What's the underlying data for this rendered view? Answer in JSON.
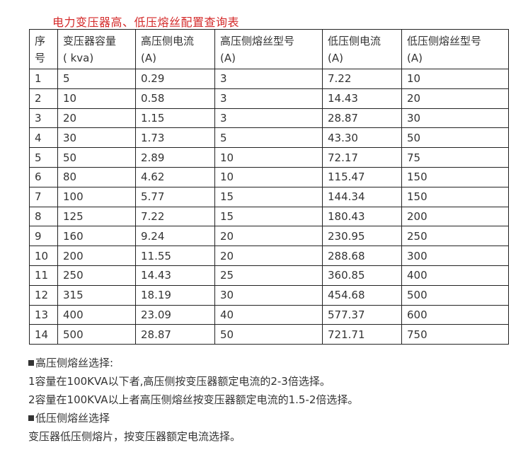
{
  "title": "电力变压器高、低压熔丝配置查询表",
  "table": {
    "headers": [
      [
        "序",
        "号"
      ],
      [
        "变压器容量",
        "( kva)"
      ],
      [
        "高压侧电流",
        "(A)"
      ],
      [
        "高压侧熔丝型号",
        "(A)"
      ],
      [
        "低压侧电流",
        "(A)"
      ],
      [
        "低压侧熔丝型号",
        "(A)"
      ]
    ],
    "rows": [
      [
        "1",
        "5",
        "0.29",
        "3",
        "7.22",
        "10"
      ],
      [
        "2",
        "10",
        "0.58",
        "3",
        "14.43",
        "20"
      ],
      [
        "3",
        "20",
        "1.15",
        "3",
        "28.87",
        "30"
      ],
      [
        "4",
        "30",
        "1.73",
        "5",
        "43.30",
        "50"
      ],
      [
        "5",
        "50",
        "2.89",
        "10",
        "72.17",
        "75"
      ],
      [
        "6",
        "80",
        "4.62",
        "10",
        "115.47",
        "150"
      ],
      [
        "7",
        "100",
        "5.77",
        "15",
        "144.34",
        "150"
      ],
      [
        "8",
        "125",
        "7.22",
        "15",
        "180.43",
        "200"
      ],
      [
        "9",
        "160",
        "9.24",
        "20",
        "230.95",
        "250"
      ],
      [
        "10",
        "200",
        "11.55",
        "20",
        "288.68",
        "300"
      ],
      [
        "11",
        "250",
        "14.43",
        "25",
        "360.85",
        "400"
      ],
      [
        "12",
        "315",
        "18.19",
        "30",
        "454.68",
        "500"
      ],
      [
        "13",
        "400",
        "23.09",
        "40",
        "577.37",
        "600"
      ],
      [
        "14",
        "500",
        "28.87",
        "50",
        "721.71",
        "750"
      ]
    ]
  },
  "notes": {
    "high_heading": "高压侧熔丝选择:",
    "high_item_1": "1容量在100KVA以下者,高压侧按变压器额定电流的2-3倍选择。",
    "high_item_2": "2容量在100KVA以上者高压侧熔丝按变压器额定电流的1.5-2倍选择。",
    "low_heading": "低压侧熔丝选择",
    "low_text": "变压器低压侧熔片，按变压器额定电流选择。"
  },
  "colors": {
    "title": "#d42a2a",
    "text": "#333333",
    "border": "#222222"
  }
}
